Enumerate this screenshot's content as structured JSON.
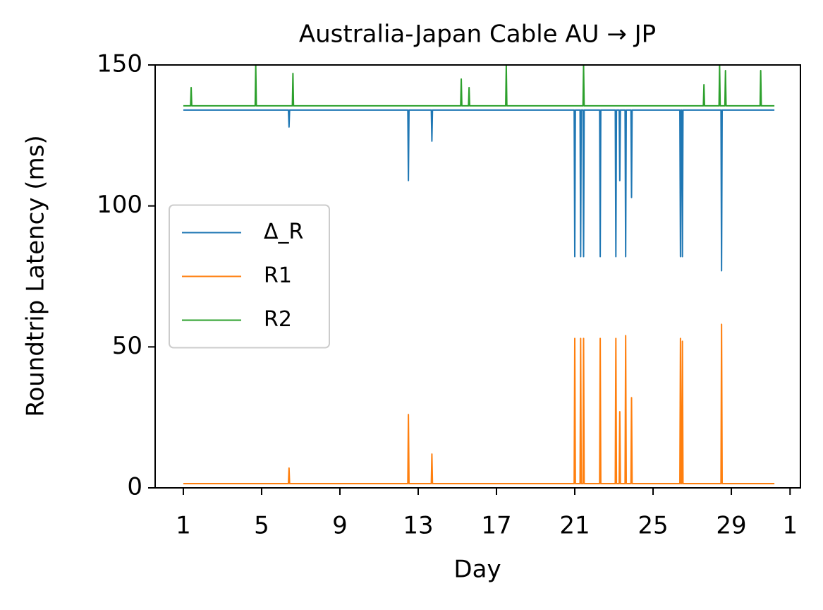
{
  "chart_data": {
    "type": "line",
    "title": "Australia-Japan Cable AU → JP",
    "x_label": "Day",
    "y_label": "Roundtrip Latency (ms)",
    "x": [
      1,
      1.37,
      1.4,
      1.43,
      4.67,
      4.7,
      4.73,
      6.37,
      6.4,
      6.43,
      6.57,
      6.6,
      6.63,
      12.47,
      12.5,
      12.53,
      13.67,
      13.7,
      13.73,
      15.17,
      15.2,
      15.23,
      15.57,
      15.6,
      15.63,
      17.47,
      17.5,
      17.53,
      20.97,
      21,
      21.03,
      21.27,
      21.3,
      21.33,
      21.42,
      21.45,
      21.48,
      22.27,
      22.3,
      22.33,
      23.07,
      23.1,
      23.13,
      23.27,
      23.3,
      23.33,
      23.57,
      23.6,
      23.63,
      23.87,
      23.9,
      23.93,
      26.37,
      26.4,
      26.43,
      26.47,
      26.5,
      26.53,
      27.57,
      27.6,
      27.63,
      28.37,
      28.4,
      28.43,
      28.47,
      28.5,
      28.53,
      28.67,
      28.7,
      28.73,
      30.47,
      30.5,
      30.53,
      31.2
    ],
    "series": [
      {
        "name": "Δ_R",
        "color": "#1f77b4",
        "values": [
          134,
          134,
          134,
          134,
          134,
          134,
          134,
          134,
          128,
          134,
          134,
          134,
          134,
          134,
          109,
          134,
          134,
          123,
          134,
          134,
          134,
          134,
          134,
          134,
          134,
          134,
          134,
          134,
          134,
          82,
          134,
          134,
          82,
          134,
          134,
          82,
          134,
          134,
          82,
          134,
          134,
          82,
          134,
          134,
          109,
          134,
          134,
          82,
          134,
          134,
          103,
          134,
          134,
          82,
          134,
          134,
          82,
          134,
          134,
          134,
          134,
          134,
          134,
          134,
          134,
          77,
          134,
          134,
          134,
          134,
          134,
          134,
          134,
          134
        ]
      },
      {
        "name": "R1",
        "color": "#ff7f0e",
        "values": [
          1.5,
          1.5,
          1.5,
          1.5,
          1.5,
          1.5,
          1.5,
          1.5,
          7,
          1.5,
          1.5,
          1.5,
          1.5,
          1.5,
          26,
          1.5,
          1.5,
          12,
          1.5,
          1.5,
          1.5,
          1.5,
          1.5,
          1.5,
          1.5,
          1.5,
          1.5,
          1.5,
          1.5,
          53,
          1.5,
          1.5,
          53,
          1.5,
          1.5,
          53,
          1.5,
          1.5,
          53,
          1.5,
          1.5,
          53,
          1.5,
          1.5,
          27,
          1.5,
          1.5,
          54,
          1.5,
          1.5,
          32,
          1.5,
          1.5,
          53,
          1.5,
          1.5,
          52,
          1.5,
          1.5,
          1.5,
          1.5,
          1.5,
          1.5,
          1.5,
          1.5,
          58,
          1.5,
          1.5,
          1.5,
          1.5,
          1.5,
          1.5,
          1.5,
          1.5
        ]
      },
      {
        "name": "R2",
        "color": "#2ca02c",
        "values": [
          135.5,
          135.5,
          142,
          135.5,
          135.5,
          150,
          135.5,
          135.5,
          135.5,
          135.5,
          135.5,
          147,
          135.5,
          135.5,
          135.5,
          135.5,
          135.5,
          135.5,
          135.5,
          135.5,
          145,
          135.5,
          135.5,
          142,
          135.5,
          135.5,
          150,
          135.5,
          135.5,
          135.5,
          135.5,
          135.5,
          135.5,
          135.5,
          135.5,
          150,
          135.5,
          135.5,
          135.5,
          135.5,
          135.5,
          135.5,
          135.5,
          135.5,
          135.5,
          135.5,
          135.5,
          135.5,
          135.5,
          135.5,
          135.5,
          135.5,
          135.5,
          135.5,
          135.5,
          135.5,
          135.5,
          135.5,
          135.5,
          143,
          135.5,
          135.5,
          150,
          135.5,
          135.5,
          135.5,
          135.5,
          135.5,
          148,
          135.5,
          135.5,
          148,
          135.5,
          135.5
        ]
      }
    ],
    "xlim": [
      -0.44,
      32.53
    ],
    "xticks": [
      1,
      5,
      9,
      13,
      17,
      21,
      25,
      29,
      {
        "value": 32,
        "label": "1"
      }
    ],
    "ylim": [
      0,
      150
    ],
    "yticks": [
      0,
      50,
      100,
      150
    ],
    "legend": "center left"
  }
}
